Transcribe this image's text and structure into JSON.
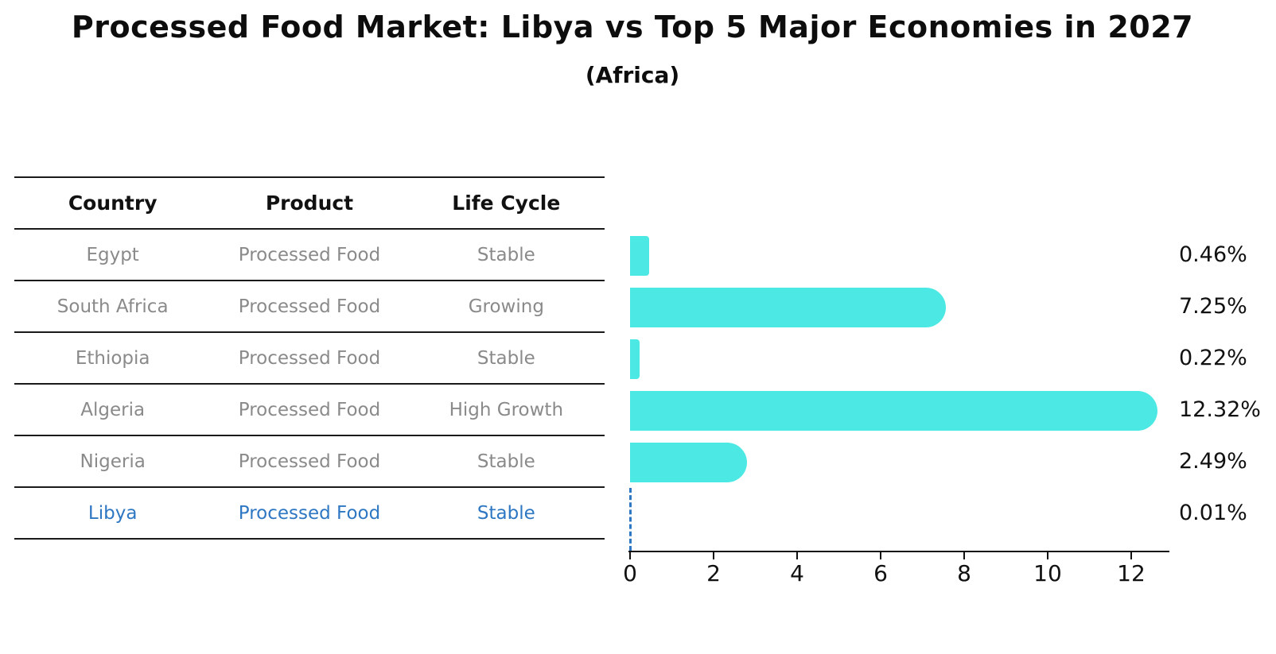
{
  "chart_data": {
    "type": "bar",
    "orientation": "horizontal",
    "title": "Processed Food Market: Libya vs Top 5 Major Economies in 2027",
    "subtitle": "(Africa)",
    "table_columns": [
      "Country",
      "Product",
      "Life Cycle"
    ],
    "rows": [
      {
        "country": "Egypt",
        "product": "Processed Food",
        "life_cycle": "Stable",
        "value": 0.46,
        "value_label": "0.46%",
        "highlight": false
      },
      {
        "country": "South Africa",
        "product": "Processed Food",
        "life_cycle": "Growing",
        "value": 7.25,
        "value_label": "7.25%",
        "highlight": false
      },
      {
        "country": "Ethiopia",
        "product": "Processed Food",
        "life_cycle": "Stable",
        "value": 0.22,
        "value_label": "0.22%",
        "highlight": false
      },
      {
        "country": "Algeria",
        "product": "Processed Food",
        "life_cycle": "High Growth",
        "value": 12.32,
        "value_label": "12.32%",
        "highlight": false
      },
      {
        "country": "Nigeria",
        "product": "Processed Food",
        "life_cycle": "Stable",
        "value": 2.49,
        "value_label": "2.49%",
        "highlight": false
      },
      {
        "country": "Libya",
        "product": "Processed Food",
        "life_cycle": "Stable",
        "value": 0.01,
        "value_label": "0.01%",
        "highlight": true
      }
    ],
    "x_axis": {
      "ticks": [
        0,
        2,
        4,
        6,
        8,
        10,
        12
      ],
      "range": [
        0,
        12.9
      ]
    },
    "grid": false,
    "legend_position": "none",
    "colors": {
      "bar": "#4BE8E4",
      "highlight_text": "#2E77C2",
      "highlight_dash": "#2E77C2",
      "row_text": "#8A8A8A",
      "header_text": "#111111",
      "value_text": "#111111",
      "axis": "#111111",
      "table_line": "#1A1A1A",
      "background": "#FFFFFF"
    }
  }
}
